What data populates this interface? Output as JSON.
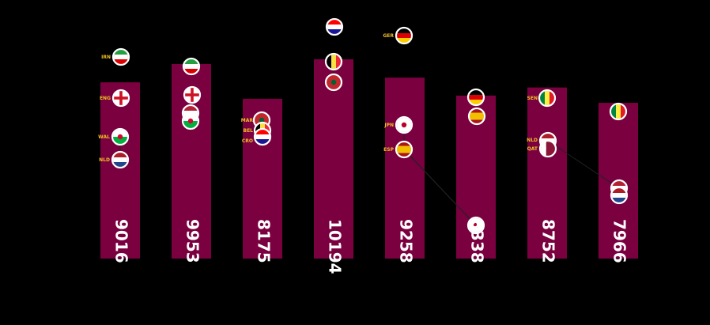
{
  "chart_data": {
    "type": "bar",
    "bar_color": "#7a0040",
    "ylim": [
      0,
      13000
    ],
    "grid": false,
    "legend": "none",
    "values": [
      9016,
      9953,
      8175,
      10194,
      9258,
      8338,
      8752,
      7966
    ],
    "labels": [
      "9016",
      "9953",
      "8175",
      "10194",
      "9258",
      "8338",
      "8752",
      "7966"
    ],
    "team_codes": [
      [
        {
          "code": "IRN"
        },
        {
          "code": "ENG"
        },
        {
          "code": "WAL"
        },
        {
          "code": "NLD"
        }
      ],
      [],
      [
        {
          "code": "MAR"
        },
        {
          "code": "BEL"
        },
        {
          "code": "CRO"
        }
      ],
      [],
      [
        {
          "code": "GER"
        },
        {
          "code": "JPN"
        },
        {
          "code": "ESP"
        }
      ],
      [],
      [
        {
          "code": "SEN"
        },
        {
          "code": "NLD"
        },
        {
          "code": "QAT"
        }
      ],
      []
    ],
    "flags": [
      [
        {
          "country": "IRN"
        },
        {
          "country": "ENG"
        },
        {
          "country": "WAL"
        },
        {
          "country": "NLD"
        }
      ],
      [
        {
          "country": "IRN"
        },
        {
          "country": "ENG"
        },
        {
          "country": "USA"
        },
        {
          "country": "WAL"
        }
      ],
      [
        {
          "country": "MAR"
        },
        {
          "country": "BEL"
        },
        {
          "country": "CRO"
        }
      ],
      [
        {
          "country": "CRO"
        },
        {
          "country": "BEL"
        },
        {
          "country": "MAR"
        }
      ],
      [
        {
          "country": "GER"
        },
        {
          "country": "JPN"
        },
        {
          "country": "ESP"
        }
      ],
      [
        {
          "country": "GER"
        },
        {
          "country": "ESP"
        },
        {
          "country": "JPN"
        }
      ],
      [
        {
          "country": "SEN"
        },
        {
          "country": "NLD"
        },
        {
          "country": "QAT"
        }
      ],
      [
        {
          "country": "SEN"
        },
        {
          "country": "USA"
        },
        {
          "country": "NLD"
        }
      ]
    ],
    "colors": {
      "IRN": {
        "kind": "h3",
        "c": [
          "#239f40",
          "#ffffff",
          "#da0000"
        ]
      },
      "ENG": {
        "kind": "cross",
        "c": [
          "#ffffff",
          "#ce1124"
        ]
      },
      "WAL": {
        "kind": "h2",
        "c": [
          "#ffffff",
          "#00b140"
        ],
        "dot": "#d30731"
      },
      "NLD": {
        "kind": "h3",
        "c": [
          "#ae1c28",
          "#ffffff",
          "#21468b"
        ]
      },
      "USA": {
        "kind": "h3",
        "c": [
          "#b22234",
          "#ffffff",
          "#3c3b6e"
        ]
      },
      "MAR": {
        "kind": "solid",
        "c": [
          "#c1272d"
        ],
        "dot": "#006233"
      },
      "BEL": {
        "kind": "v3",
        "c": [
          "#000000",
          "#fae042",
          "#ed2939"
        ]
      },
      "CRO": {
        "kind": "h3",
        "c": [
          "#ff0000",
          "#ffffff",
          "#171796"
        ]
      },
      "GER": {
        "kind": "h3",
        "c": [
          "#000000",
          "#dd0000",
          "#ffce00"
        ]
      },
      "JPN": {
        "kind": "solid",
        "c": [
          "#ffffff"
        ],
        "dot": "#bc002d"
      },
      "ESP": {
        "kind": "h3w",
        "c": [
          "#aa151b",
          "#f1bf00",
          "#aa151b"
        ]
      },
      "SEN": {
        "kind": "v3",
        "c": [
          "#00853f",
          "#fdef42",
          "#e31b23"
        ]
      },
      "QAT": {
        "kind": "v2",
        "c": [
          "#ffffff",
          "#8a1538"
        ]
      }
    }
  }
}
